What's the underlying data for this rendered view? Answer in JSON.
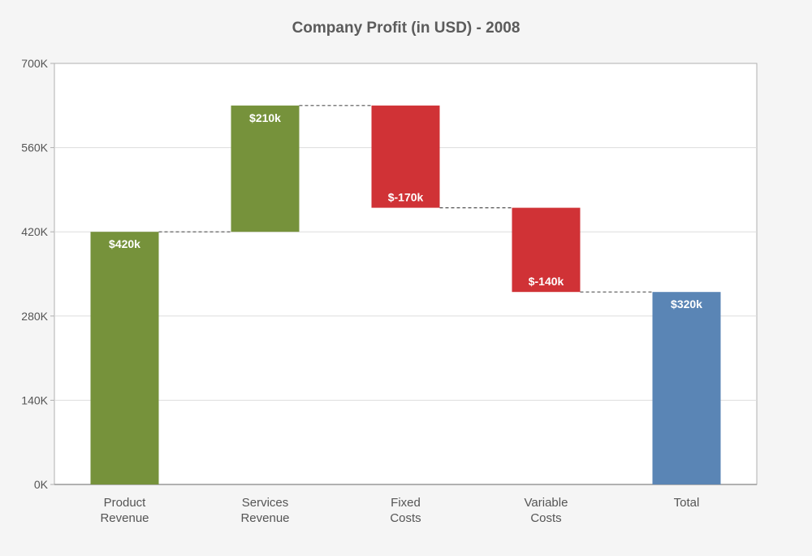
{
  "chart_data": {
    "type": "bar",
    "subtype": "waterfall",
    "title": "Company Profit (in USD) - 2008",
    "categories": [
      "Product\nRevenue",
      "Services\nRevenue",
      "Fixed\nCosts",
      "Variable\nCosts",
      "Total"
    ],
    "values": [
      420,
      210,
      -170,
      -140,
      320
    ],
    "bar_start": [
      0,
      420,
      630,
      460,
      0
    ],
    "bar_end": [
      420,
      630,
      460,
      320,
      320
    ],
    "value_labels": [
      "$420k",
      "$210k",
      "$-170k",
      "$-140k",
      "$320k"
    ],
    "units": "K",
    "y_ticks": [
      "0K",
      "140K",
      "280K",
      "420K",
      "560K",
      "700K"
    ],
    "y_tick_values": [
      0,
      140,
      280,
      420,
      560,
      700
    ],
    "ylim": [
      0,
      700
    ],
    "grid": true,
    "connectors": "dashed",
    "xlabel": "",
    "ylabel": ""
  },
  "colors": {
    "positive": "#76923b",
    "negative": "#d03236",
    "total": "#5a85b5",
    "plot_background": "#ffffff",
    "gridline": "#dddddd",
    "axis": "#b0b0b0",
    "connector": "#555555"
  }
}
